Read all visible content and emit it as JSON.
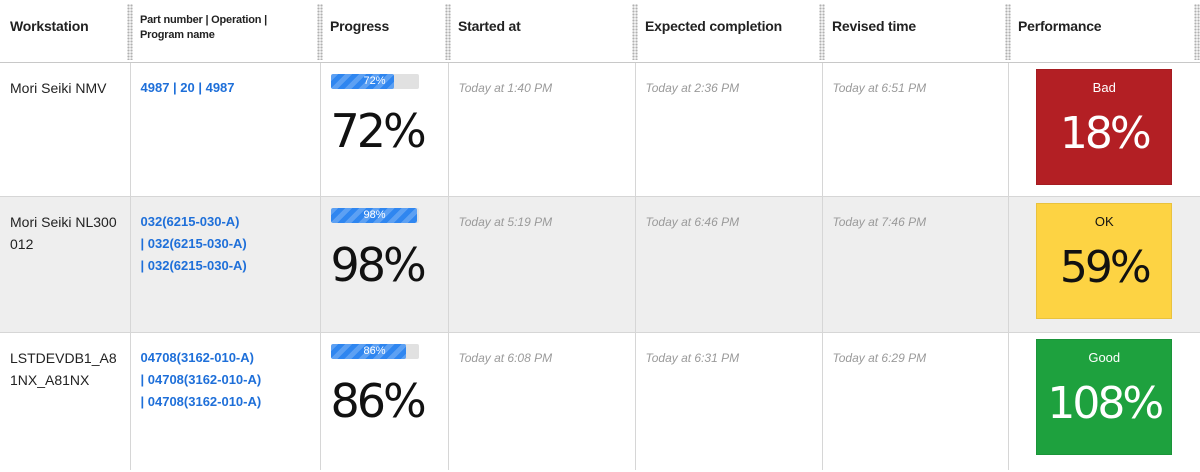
{
  "columns": {
    "workstation": "Workstation",
    "part": "Part number | Operation | Program name",
    "progress": "Progress",
    "started": "Started at",
    "expected": "Expected completion",
    "revised": "Revised time",
    "performance": "Performance"
  },
  "rows": [
    {
      "workstation": "Mori Seiki NMV",
      "part_lines": [
        "4987 | 20 | 4987",
        "",
        ""
      ],
      "progress_label": "72%",
      "progress_value": 0.72,
      "progress_big": "72%",
      "started": "Today at 1:40 PM",
      "expected": "Today at 2:36 PM",
      "revised": "Today at 6:51 PM",
      "performance_label": "Bad",
      "performance_value": "18%",
      "performance_color": "#b31f24",
      "performance_text_color": "#ffffff"
    },
    {
      "workstation": "Mori Seiki NL300012",
      "part_lines": [
        "032(6215-030-A)",
        "| 032(6215-030-A)",
        "| 032(6215-030-A)"
      ],
      "progress_label": "98%",
      "progress_value": 0.98,
      "progress_big": "98%",
      "started": "Today at 5:19 PM",
      "expected": "Today at 6:46 PM",
      "revised": "Today at 7:46 PM",
      "performance_label": "OK",
      "performance_value": "59%",
      "performance_color": "#fdd343",
      "performance_text_color": "#111111"
    },
    {
      "workstation": "LSTDEVDB1_A81NX_A81NX",
      "part_lines": [
        "04708(3162-010-A)",
        "| 04708(3162-010-A)",
        "| 04708(3162-010-A)"
      ],
      "progress_label": "86%",
      "progress_value": 0.86,
      "progress_big": "86%",
      "started": "Today at 6:08 PM",
      "expected": "Today at 6:31 PM",
      "revised": "Today at 6:29 PM",
      "performance_label": "Good",
      "performance_value": "108%",
      "performance_color": "#1ea13e",
      "performance_text_color": "#ffffff"
    }
  ]
}
